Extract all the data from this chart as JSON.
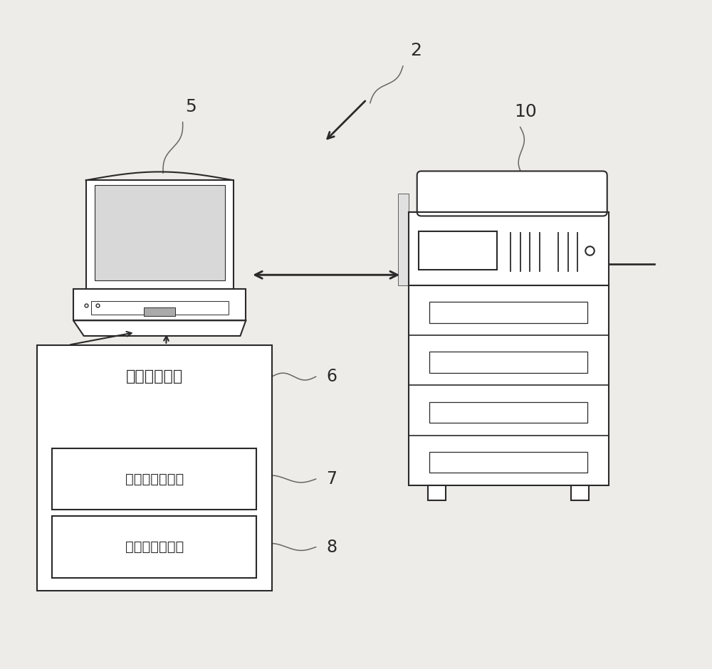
{
  "bg_color": "#eeece8",
  "line_color": "#2a2a2a",
  "label_2": "2",
  "label_5": "5",
  "label_6": "6",
  "label_7": "7",
  "label_8": "8",
  "label_10": "10",
  "text_printer_driver": "打印机驱动器",
  "text_settings_mgr": "设定信息管理部",
  "text_job_gen": "任务生成发送部",
  "font_size_labels": 15,
  "font_size_chinese": 16,
  "font_size_inner": 14
}
